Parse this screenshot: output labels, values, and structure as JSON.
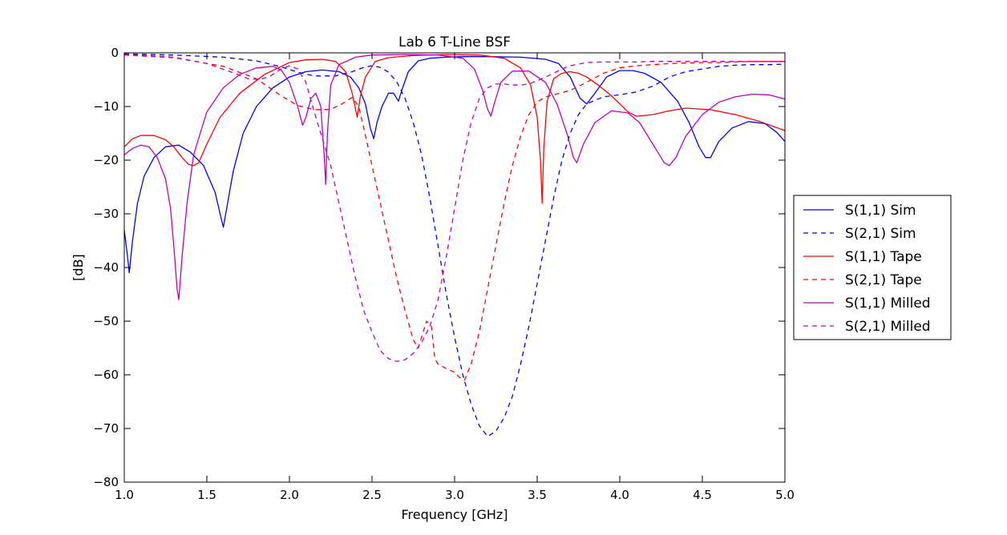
{
  "chart_data": {
    "type": "line",
    "title": "Lab 6 T-Line BSF",
    "xlabel": "Frequency [GHz]",
    "ylabel": "[dB]",
    "xlim": [
      1.0,
      5.0
    ],
    "ylim": [
      -80,
      0
    ],
    "xticks": [
      1.0,
      1.5,
      2.0,
      2.5,
      3.0,
      3.5,
      4.0,
      4.5,
      5.0
    ],
    "xtick_labels": [
      "1.0",
      "1.5",
      "2.0",
      "2.5",
      "3.0",
      "3.5",
      "4.0",
      "4.5",
      "5.0"
    ],
    "yticks": [
      0,
      -10,
      -20,
      -30,
      -40,
      -50,
      -60,
      -70,
      -80
    ],
    "ytick_labels": [
      "0",
      "−10",
      "−20",
      "−30",
      "−40",
      "−50",
      "−60",
      "−70",
      "−80"
    ],
    "grid": false,
    "legend_position": "outside-right",
    "series": [
      {
        "name": "S(1,1) Sim",
        "color": "#0000ff",
        "dash": "solid",
        "x": [
          1.0,
          1.02,
          1.03,
          1.05,
          1.08,
          1.12,
          1.18,
          1.25,
          1.33,
          1.4,
          1.48,
          1.55,
          1.58,
          1.6,
          1.62,
          1.66,
          1.72,
          1.8,
          1.9,
          2.0,
          2.1,
          2.2,
          2.3,
          2.37,
          2.42,
          2.46,
          2.49,
          2.51,
          2.53,
          2.56,
          2.6,
          2.63,
          2.66,
          2.68,
          2.72,
          2.78,
          2.85,
          2.95,
          3.05,
          3.2,
          3.4,
          3.55,
          3.63,
          3.7,
          3.76,
          3.8,
          3.85,
          3.92,
          4.0,
          4.08,
          4.15,
          4.25,
          4.35,
          4.42,
          4.48,
          4.52,
          4.55,
          4.6,
          4.68,
          4.78,
          4.88,
          4.95,
          5.0
        ],
        "y": [
          -33,
          -38,
          -41,
          -35,
          -28,
          -23,
          -19.5,
          -17.5,
          -17.2,
          -18.5,
          -21,
          -26,
          -30,
          -32.5,
          -29,
          -22,
          -15,
          -10,
          -6.5,
          -4.5,
          -3.5,
          -3.2,
          -3.5,
          -4.5,
          -6.5,
          -9.5,
          -14,
          -16,
          -13,
          -10,
          -7.5,
          -7.5,
          -9,
          -7,
          -3.5,
          -1.5,
          -1,
          -0.8,
          -0.7,
          -0.7,
          -0.8,
          -1.2,
          -2,
          -4.5,
          -8.5,
          -9.5,
          -7.5,
          -4.5,
          -3.3,
          -3.3,
          -3.8,
          -5.5,
          -9,
          -13,
          -17.5,
          -19.5,
          -19.5,
          -16.5,
          -14,
          -12.8,
          -13.2,
          -14.8,
          -16.5
        ]
      },
      {
        "name": "S(2,1) Sim",
        "color": "#0000ff",
        "dash": "dashed",
        "x": [
          1.0,
          1.3,
          1.6,
          1.8,
          1.95,
          2.05,
          2.15,
          2.28,
          2.38,
          2.45,
          2.5,
          2.55,
          2.6,
          2.65,
          2.7,
          2.75,
          2.8,
          2.85,
          2.9,
          2.95,
          3.0,
          3.05,
          3.1,
          3.15,
          3.2,
          3.25,
          3.3,
          3.35,
          3.4,
          3.45,
          3.5,
          3.55,
          3.6,
          3.65,
          3.7,
          3.75,
          3.8,
          3.9,
          4.0,
          4.1,
          4.2,
          4.3,
          4.4,
          4.5,
          4.6,
          4.7,
          4.8,
          4.9,
          5.0
        ],
        "y": [
          -0.2,
          -0.4,
          -0.8,
          -1.5,
          -2.6,
          -3.6,
          -4.3,
          -4.3,
          -3.5,
          -2.7,
          -2.4,
          -2.7,
          -3.6,
          -5.4,
          -8.5,
          -13,
          -19,
          -27,
          -36,
          -45,
          -53,
          -60,
          -65.5,
          -69.5,
          -71.5,
          -70.5,
          -68,
          -64,
          -58,
          -51,
          -43,
          -35,
          -27,
          -20,
          -15,
          -11.5,
          -9.5,
          -8.2,
          -7.8,
          -7.3,
          -6.2,
          -4.5,
          -3.5,
          -3.0,
          -2.5,
          -2.3,
          -2.2,
          -2.2,
          -2.1
        ]
      },
      {
        "name": "S(1,1) Tape",
        "color": "#ff0000",
        "dash": "solid",
        "x": [
          1.0,
          1.05,
          1.1,
          1.18,
          1.25,
          1.3,
          1.35,
          1.39,
          1.42,
          1.45,
          1.5,
          1.58,
          1.7,
          1.85,
          2.0,
          2.1,
          2.2,
          2.28,
          2.34,
          2.38,
          2.41,
          2.43,
          2.46,
          2.52,
          2.6,
          2.75,
          2.95,
          3.15,
          3.3,
          3.4,
          3.46,
          3.5,
          3.52,
          3.53,
          3.54,
          3.56,
          3.6,
          3.65,
          3.7,
          3.75,
          3.8,
          3.87,
          3.95,
          4.05,
          4.1,
          4.2,
          4.3,
          4.4,
          4.55,
          4.7,
          4.85,
          5.0
        ],
        "y": [
          -17.5,
          -16,
          -15.4,
          -15.4,
          -16.2,
          -17.5,
          -19.5,
          -20.8,
          -21,
          -20.5,
          -17,
          -12,
          -7.5,
          -4,
          -1.8,
          -1.3,
          -1.2,
          -1.6,
          -3.5,
          -7.5,
          -12,
          -8,
          -4.5,
          -1.6,
          -0.9,
          -0.5,
          -0.3,
          -0.4,
          -1,
          -2.8,
          -6,
          -12,
          -20,
          -28,
          -18,
          -9,
          -4.8,
          -3.8,
          -3.5,
          -3.8,
          -4.5,
          -6,
          -8,
          -11,
          -11.8,
          -11.5,
          -10.8,
          -10.3,
          -10.6,
          -11.5,
          -12.8,
          -14.5
        ]
      },
      {
        "name": "S(2,1) Tape",
        "color": "#ff0000",
        "dash": "dashed",
        "x": [
          1.0,
          1.3,
          1.6,
          1.8,
          1.95,
          2.05,
          2.15,
          2.25,
          2.32,
          2.38,
          2.42,
          2.45,
          2.5,
          2.55,
          2.6,
          2.65,
          2.7,
          2.75,
          2.78,
          2.8,
          2.83,
          2.86,
          2.88,
          2.9,
          2.93,
          2.96,
          3.0,
          3.03,
          3.06,
          3.1,
          3.15,
          3.2,
          3.25,
          3.3,
          3.35,
          3.4,
          3.45,
          3.5,
          3.55,
          3.6,
          3.7,
          3.8,
          3.9,
          4.0,
          4.1,
          4.2,
          4.3,
          4.4,
          4.5,
          4.6,
          4.7,
          4.8,
          4.9,
          5.0
        ],
        "y": [
          -0.4,
          -0.9,
          -2.5,
          -4.8,
          -8,
          -9.8,
          -10.6,
          -10.5,
          -9.5,
          -8.3,
          -10,
          -14,
          -21,
          -28,
          -35,
          -42,
          -48,
          -53.5,
          -55,
          -53,
          -50,
          -51,
          -57,
          -58,
          -58.5,
          -59,
          -59.5,
          -60.5,
          -61,
          -58,
          -52,
          -44,
          -36,
          -28,
          -21,
          -15.5,
          -11.5,
          -9.2,
          -8.2,
          -7.8,
          -7,
          -5.5,
          -3.8,
          -2.8,
          -2.4,
          -2.2,
          -2.0,
          -1.9,
          -1.8,
          -1.8,
          -1.7,
          -1.6,
          -1.6,
          -1.6
        ]
      },
      {
        "name": "S(1,1) Milled",
        "color": "#bf00bf",
        "dash": "solid",
        "x": [
          1.0,
          1.05,
          1.1,
          1.15,
          1.2,
          1.25,
          1.28,
          1.3,
          1.32,
          1.33,
          1.35,
          1.38,
          1.42,
          1.5,
          1.6,
          1.7,
          1.8,
          1.9,
          1.95,
          2.0,
          2.05,
          2.08,
          2.1,
          2.13,
          2.16,
          2.19,
          2.21,
          2.22,
          2.23,
          2.25,
          2.3,
          2.4,
          2.5,
          2.7,
          2.9,
          3.05,
          3.12,
          3.17,
          3.2,
          3.22,
          3.24,
          3.28,
          3.35,
          3.45,
          3.55,
          3.62,
          3.68,
          3.72,
          3.74,
          3.78,
          3.85,
          3.95,
          4.05,
          4.12,
          4.2,
          4.27,
          4.3,
          4.34,
          4.4,
          4.5,
          4.6,
          4.7,
          4.8,
          4.9,
          5.0
        ],
        "y": [
          -19,
          -17.8,
          -17.2,
          -17.5,
          -19.5,
          -23.5,
          -29,
          -36,
          -44,
          -46,
          -38,
          -28,
          -19,
          -11,
          -6.5,
          -4,
          -2.8,
          -2.5,
          -3.2,
          -5.5,
          -10,
          -13.5,
          -12,
          -8.5,
          -7.5,
          -10,
          -19,
          -24.5,
          -15,
          -6,
          -2.2,
          -0.8,
          -0.4,
          -0.3,
          -0.4,
          -1,
          -3,
          -7,
          -10.5,
          -11.8,
          -9.5,
          -5.5,
          -3.4,
          -3.4,
          -5.5,
          -9.5,
          -15,
          -19.5,
          -20.5,
          -17,
          -13,
          -10.8,
          -11.2,
          -13,
          -17,
          -20.5,
          -21,
          -19.5,
          -15.5,
          -11.5,
          -9.2,
          -8.2,
          -7.7,
          -7.8,
          -8.6
        ]
      },
      {
        "name": "S(2,1) Milled",
        "color": "#bf00bf",
        "dash": "dashed",
        "x": [
          1.0,
          1.3,
          1.5,
          1.65,
          1.75,
          1.82,
          1.88,
          1.95,
          2.0,
          2.05,
          2.1,
          2.15,
          2.2,
          2.25,
          2.3,
          2.35,
          2.4,
          2.45,
          2.5,
          2.55,
          2.6,
          2.65,
          2.7,
          2.75,
          2.8,
          2.85,
          2.9,
          2.95,
          3.0,
          3.05,
          3.1,
          3.15,
          3.2,
          3.25,
          3.3,
          3.35,
          3.4,
          3.45,
          3.5,
          3.55,
          3.6,
          3.65,
          3.7,
          3.8,
          3.9,
          4.0,
          4.1,
          4.2,
          4.3,
          4.4,
          4.5,
          4.6,
          4.7,
          4.8,
          4.9,
          5.0
        ],
        "y": [
          -0.3,
          -0.8,
          -2,
          -3.6,
          -4.8,
          -5,
          -4.4,
          -3,
          -2.4,
          -3,
          -5.5,
          -11,
          -16,
          -21,
          -28,
          -35,
          -42,
          -48,
          -52,
          -55.5,
          -57,
          -57.5,
          -57.2,
          -56,
          -54,
          -51,
          -46,
          -38,
          -29,
          -20,
          -13,
          -8.5,
          -6.5,
          -5.8,
          -5.8,
          -6,
          -6,
          -5.8,
          -5.2,
          -4.5,
          -3.8,
          -3,
          -2.4,
          -1.8,
          -1.7,
          -1.7,
          -1.7,
          -1.6,
          -1.6,
          -1.6,
          -1.6,
          -1.6,
          -1.6,
          -1.6,
          -1.6,
          -1.6
        ]
      }
    ]
  }
}
